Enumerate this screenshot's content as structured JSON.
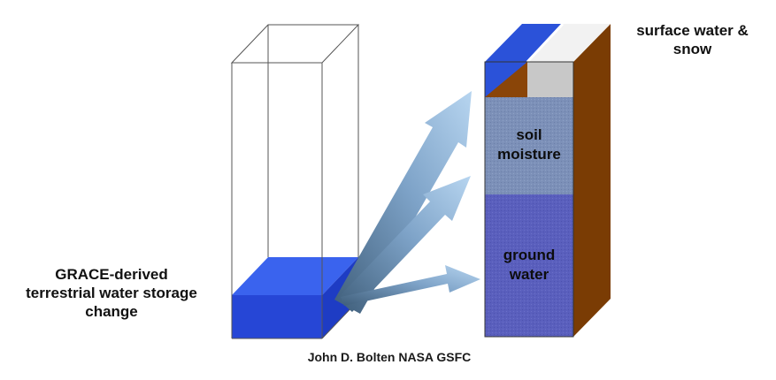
{
  "labels": {
    "grace_line1": "GRACE-derived",
    "grace_line2": "terrestrial water storage",
    "grace_line3": "change",
    "surface_line1": "surface water &",
    "surface_line2": "snow",
    "soil_line1": "soil",
    "soil_line2": "moisture",
    "ground_line1": "ground",
    "ground_line2": "water",
    "credit": "John D. Bolten NASA GSFC"
  },
  "colors": {
    "grace_water": "#2f55e6",
    "surface_water": "#2b52d9",
    "snow": "#d9d9d9",
    "soil_moisture": "#7c90b8",
    "ground_water": "#5a5fbd",
    "earth": "#7a3c04",
    "arrow": "#9dc3e6"
  }
}
